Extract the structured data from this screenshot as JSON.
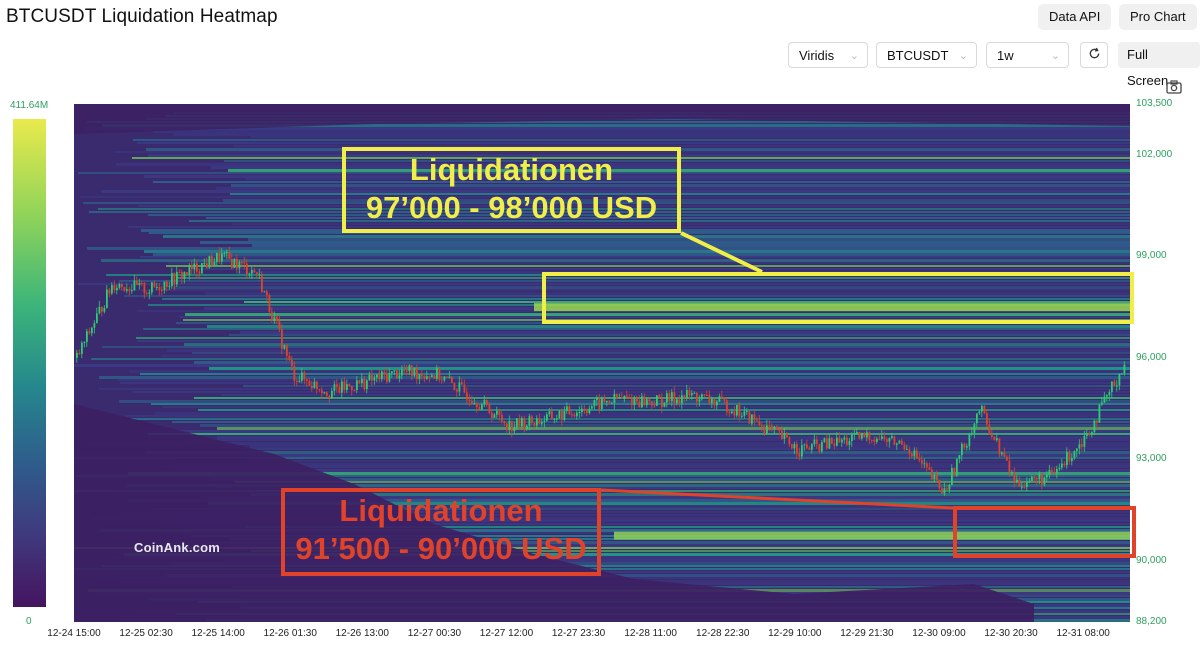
{
  "header": {
    "title": "BTCUSDT Liquidation Heatmap",
    "data_api_label": "Data API",
    "pro_chart_label": "Pro Chart"
  },
  "toolbar": {
    "colorscheme": "Viridis",
    "symbol": "BTCUSDT",
    "interval": "1w",
    "fullscreen_label": "Full Screen",
    "refresh_icon": "refresh-icon",
    "camera_icon": "camera-icon"
  },
  "legend": {
    "max": "411.64M",
    "min": "0"
  },
  "chart_data": {
    "type": "heatmap",
    "title": "BTCUSDT Liquidation Heatmap",
    "colorscale": "Viridis",
    "colorbar_range": [
      0,
      "411.64M"
    ],
    "y_ticks": [
      "103,500",
      "102,000",
      "99,000",
      "96,000",
      "93,000",
      "90,000",
      "88,200"
    ],
    "y_tick_values": [
      103500,
      102000,
      99000,
      96000,
      93000,
      90000,
      88200
    ],
    "ylim": [
      88200,
      103500
    ],
    "x_ticks": [
      "12-24 15:00",
      "12-25 02:30",
      "12-25 14:00",
      "12-26 01:30",
      "12-26 13:00",
      "12-27 00:30",
      "12-27 12:00",
      "12-27 23:30",
      "12-28 11:00",
      "12-28 22:30",
      "12-29 10:00",
      "12-29 21:30",
      "12-30 09:00",
      "12-30 20:30",
      "12-31 08:00"
    ],
    "price_series_approx": [
      96000,
      98200,
      98000,
      98500,
      99000,
      98500,
      95500,
      95000,
      95300,
      95600,
      95500,
      94800,
      94000,
      94200,
      94500,
      94800,
      94700,
      94900,
      94600,
      94000,
      93300,
      93500,
      93700,
      93400,
      92000,
      94500,
      92300,
      92500,
      93800,
      95800
    ],
    "annotations": [
      {
        "text": [
          "Liquidationen",
          "97’000 - 98’000 USD"
        ],
        "color": "#f1ee4a",
        "price_range": [
          97000,
          98000
        ]
      },
      {
        "text": [
          "Liquidationen",
          "91’500 - 90’000 USD"
        ],
        "color": "#e0432a",
        "price_range": [
          90000,
          91500
        ]
      }
    ]
  },
  "watermark": "CoinAnk.com",
  "colors": {
    "accent_green": "#2ea05f",
    "annot_yellow": "#f1ee4a",
    "annot_red": "#e0432a",
    "up": "#2ecc71",
    "down": "#e0432a"
  }
}
